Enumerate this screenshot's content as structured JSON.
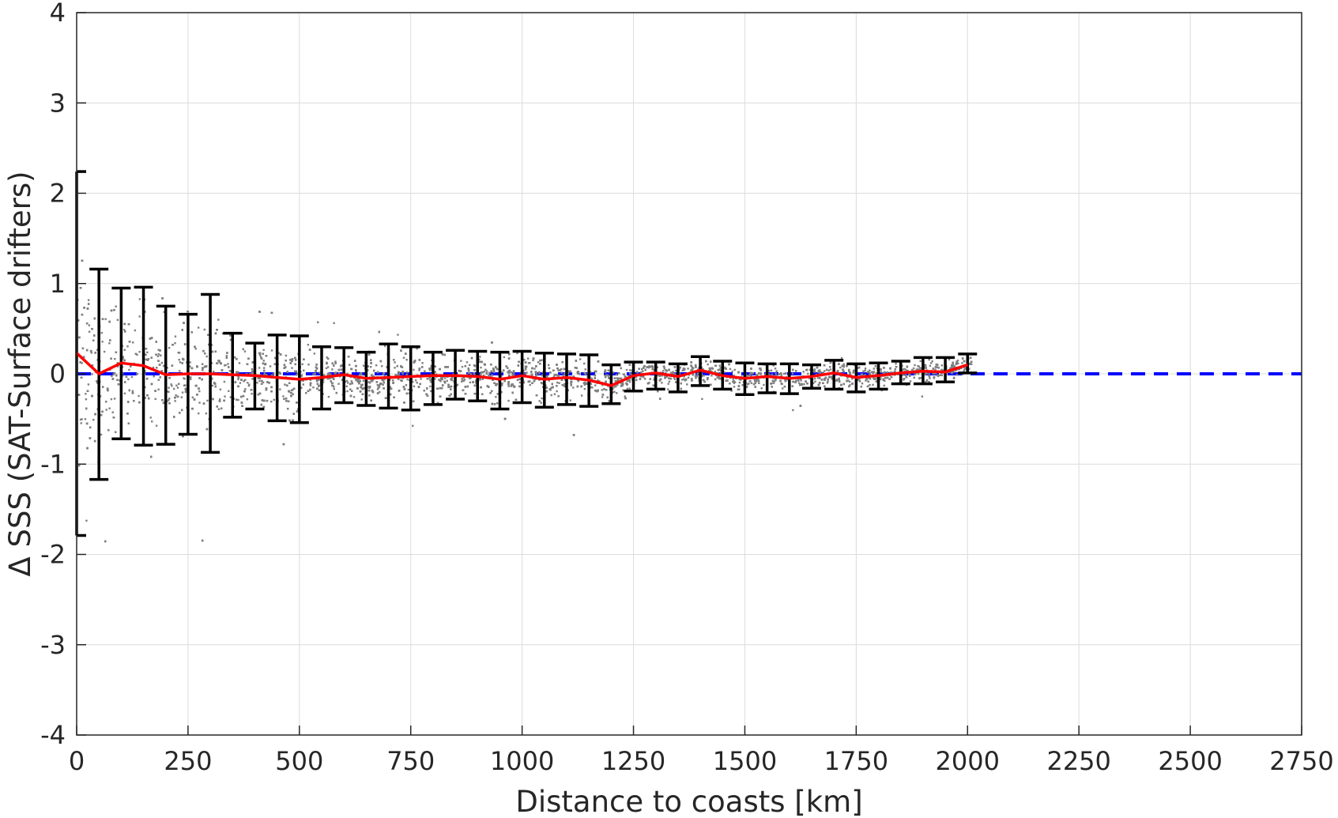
{
  "chart_data": {
    "type": "scatter",
    "title": "",
    "xlabel": "Distance to coasts [km]",
    "ylabel": "Δ SSS (SAT-Surface drifters)",
    "xlim": [
      0,
      2750
    ],
    "ylim": [
      -4,
      4
    ],
    "x_ticks": [
      0,
      250,
      500,
      750,
      1000,
      1250,
      1500,
      1750,
      2000,
      2250,
      2500,
      2750
    ],
    "y_ticks": [
      -4,
      -3,
      -2,
      -1,
      0,
      1,
      2,
      3,
      4
    ],
    "x_tick_labels": [
      "0",
      "250",
      "500",
      "750",
      "1000",
      "1250",
      "1500",
      "1750",
      "2000",
      "2250",
      "2500",
      "2750"
    ],
    "y_tick_labels": [
      "-4",
      "-3",
      "-2",
      "-1",
      "0",
      "1",
      "2",
      "3",
      "4"
    ],
    "grid": true,
    "legend": "none",
    "colors": {
      "scatter": "#808080",
      "mean_line": "#ff0000",
      "error_bars": "#000000",
      "zero_line": "#0000ff",
      "grid": "#dcdcdc",
      "axes": "#262626"
    },
    "zero_reference_line": {
      "y": 0,
      "style": "dashed",
      "x_range": [
        0,
        2750
      ]
    },
    "binned_mean": {
      "x": [
        0,
        50,
        100,
        150,
        200,
        250,
        300,
        350,
        400,
        450,
        500,
        550,
        600,
        650,
        700,
        750,
        800,
        850,
        900,
        950,
        1000,
        1050,
        1100,
        1150,
        1200,
        1250,
        1300,
        1350,
        1400,
        1450,
        1500,
        1550,
        1600,
        1650,
        1700,
        1750,
        1800,
        1850,
        1900,
        1950,
        2000
      ],
      "y": [
        0.23,
        0.0,
        0.12,
        0.09,
        -0.01,
        0.0,
        0.0,
        -0.01,
        -0.02,
        -0.04,
        -0.06,
        -0.04,
        -0.01,
        -0.05,
        -0.04,
        -0.03,
        -0.02,
        -0.02,
        -0.03,
        -0.06,
        -0.02,
        -0.06,
        -0.04,
        -0.07,
        -0.13,
        -0.02,
        0.01,
        -0.03,
        0.04,
        -0.02,
        -0.05,
        -0.03,
        -0.05,
        -0.03,
        0.01,
        -0.04,
        -0.02,
        0.01,
        0.03,
        0.02,
        0.1
      ],
      "err_low": [
        -1.79,
        -1.17,
        -0.72,
        -0.79,
        -0.78,
        -0.67,
        -0.87,
        -0.48,
        -0.39,
        -0.52,
        -0.54,
        -0.39,
        -0.32,
        -0.35,
        -0.38,
        -0.4,
        -0.34,
        -0.28,
        -0.3,
        -0.39,
        -0.32,
        -0.37,
        -0.34,
        -0.36,
        -0.33,
        -0.19,
        -0.17,
        -0.2,
        -0.13,
        -0.17,
        -0.23,
        -0.21,
        -0.22,
        -0.16,
        -0.17,
        -0.2,
        -0.17,
        -0.11,
        -0.11,
        -0.09,
        0.01
      ],
      "err_high": [
        2.24,
        1.16,
        0.95,
        0.96,
        0.75,
        0.66,
        0.88,
        0.45,
        0.34,
        0.43,
        0.42,
        0.3,
        0.29,
        0.24,
        0.33,
        0.3,
        0.24,
        0.26,
        0.25,
        0.24,
        0.25,
        0.23,
        0.22,
        0.21,
        0.1,
        0.13,
        0.13,
        0.11,
        0.19,
        0.14,
        0.12,
        0.11,
        0.11,
        0.1,
        0.15,
        0.11,
        0.12,
        0.14,
        0.18,
        0.18,
        0.22
      ]
    }
  }
}
